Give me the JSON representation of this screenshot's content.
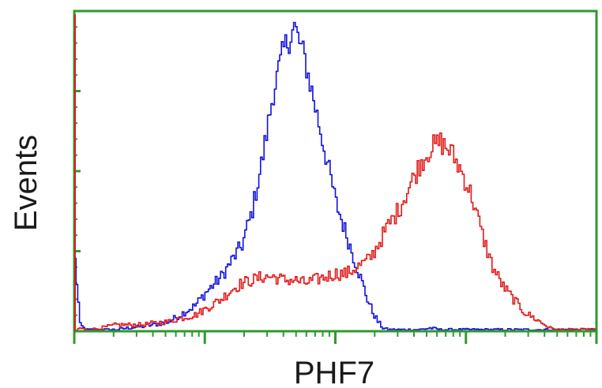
{
  "chart_data": {
    "type": "line",
    "title": "",
    "xlabel": "PHF7",
    "ylabel": "Events",
    "x_scale": "log",
    "x_decades": 4,
    "xlim": [
      0,
      1
    ],
    "ylim": [
      0,
      1
    ],
    "grid": false,
    "legend": "none",
    "axis_color": "#2e9a2e",
    "x": [
      0.0,
      0.01,
      0.02,
      0.03,
      0.05,
      0.08,
      0.1,
      0.13,
      0.15,
      0.18,
      0.2,
      0.23,
      0.25,
      0.28,
      0.3,
      0.32,
      0.34,
      0.36,
      0.38,
      0.4,
      0.42,
      0.44,
      0.46,
      0.48,
      0.5,
      0.52,
      0.53,
      0.54,
      0.55,
      0.56,
      0.57,
      0.58,
      0.59,
      0.6,
      0.62,
      0.64,
      0.66,
      0.68,
      0.7,
      0.72,
      0.74,
      0.76,
      0.78,
      0.8,
      0.82,
      0.84,
      0.85,
      0.86,
      0.87,
      0.88,
      0.89,
      0.9,
      0.91,
      0.92,
      0.93,
      0.94,
      0.95,
      0.96,
      0.97,
      0.98,
      0.99,
      1.0
    ],
    "series": [
      {
        "color": "#1111dd",
        "values": [
          0.22,
          0.02,
          0.005,
          0.005,
          0.005,
          0.005,
          0.01,
          0.015,
          0.02,
          0.03,
          0.05,
          0.08,
          0.12,
          0.17,
          0.22,
          0.27,
          0.38,
          0.55,
          0.75,
          0.88,
          0.95,
          0.85,
          0.7,
          0.55,
          0.4,
          0.3,
          0.25,
          0.2,
          0.15,
          0.1,
          0.06,
          0.03,
          0.01,
          0.005,
          0.005,
          0.005,
          0.005,
          0.01,
          0.005,
          0.005,
          0.005,
          0.005,
          0.005,
          0.005,
          0.005,
          0.005,
          0.005,
          0.005,
          0.005,
          0.005,
          0.005,
          0.005,
          0.005,
          0.005,
          0.005,
          0.005,
          0.005,
          0.005,
          0.005,
          0.005,
          0.005,
          0.005
        ]
      },
      {
        "color": "#e01a1a",
        "values": [
          0.0,
          0.01,
          0.005,
          0.005,
          0.01,
          0.02,
          0.02,
          0.02,
          0.025,
          0.03,
          0.04,
          0.05,
          0.07,
          0.1,
          0.13,
          0.15,
          0.16,
          0.17,
          0.17,
          0.16,
          0.16,
          0.15,
          0.16,
          0.17,
          0.18,
          0.18,
          0.19,
          0.2,
          0.21,
          0.22,
          0.24,
          0.27,
          0.3,
          0.33,
          0.38,
          0.45,
          0.52,
          0.57,
          0.59,
          0.56,
          0.5,
          0.42,
          0.3,
          0.2,
          0.14,
          0.1,
          0.08,
          0.06,
          0.05,
          0.04,
          0.03,
          0.02,
          0.01,
          0.005,
          0.005,
          0.005,
          0.005,
          0.005,
          0.005,
          0.005,
          0.005,
          0.005
        ]
      }
    ]
  }
}
